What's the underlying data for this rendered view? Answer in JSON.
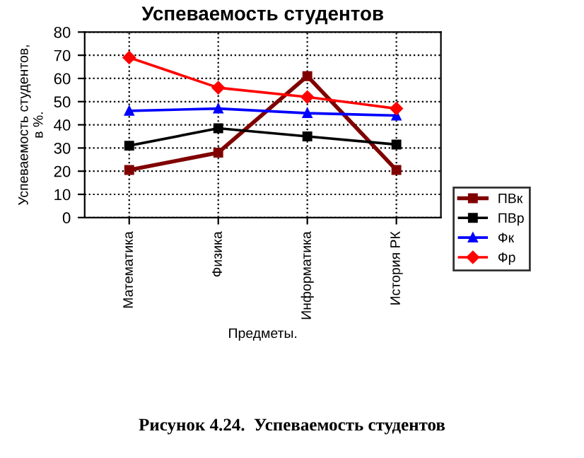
{
  "chart_data": {
    "type": "line",
    "title": "Успеваемость студентов",
    "xlabel": "Предметы.",
    "ylabel": "Успеваемость студентов,\nв %.",
    "categories": [
      "Математика",
      "Физика",
      "Информатика",
      "История РК"
    ],
    "series": [
      {
        "name": "ПВк",
        "color": "#800000",
        "marker": "square",
        "values": [
          20.5,
          28,
          61,
          20.5
        ]
      },
      {
        "name": "ПВр",
        "color": "#000000",
        "marker": "square",
        "values": [
          31,
          38.5,
          35,
          31.5
        ]
      },
      {
        "name": "Фк",
        "color": "#0000ff",
        "marker": "triangle",
        "values": [
          46,
          47,
          45,
          44
        ]
      },
      {
        "name": "Фр",
        "color": "#ff0000",
        "marker": "diamond",
        "values": [
          69,
          56,
          52,
          47
        ]
      }
    ],
    "ylim": [
      0,
      80
    ],
    "yticks": [
      0,
      10,
      20,
      30,
      40,
      50,
      60,
      70,
      80
    ],
    "grid": true,
    "legend": "right",
    "annotations": [
      "Рисунок 4.24.  Успеваемость студентов"
    ]
  }
}
